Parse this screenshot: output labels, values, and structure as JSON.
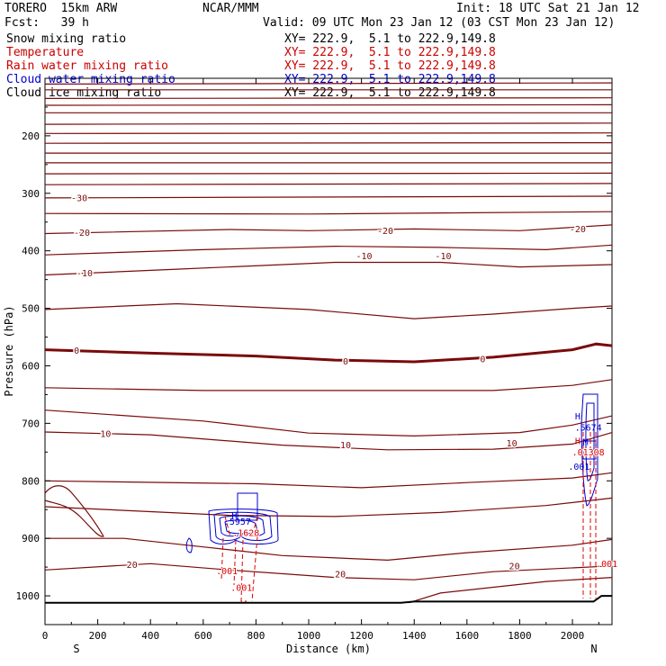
{
  "header": {
    "model": "TORERO  15km ARW",
    "center": "NCAR/MMM",
    "init": "Init: 18 UTC Sat 21 Jan 12",
    "fcst": "Fcst:   39 h",
    "valid": "Valid: 09 UTC Mon 23 Jan 12 (03 CST Mon 23 Jan 12)"
  },
  "legend": [
    {
      "name": "Snow mixing ratio",
      "xy": "XY= 222.9,  5.1 to 222.9,149.8",
      "color": "#000000",
      "xy_color": "#000000"
    },
    {
      "name": "Temperature",
      "xy": "XY= 222.9,  5.1 to 222.9,149.8",
      "color": "#cc0000",
      "xy_color": "#cc0000"
    },
    {
      "name": "Rain water mixing ratio",
      "xy": "XY= 222.9,  5.1 to 222.9,149.8",
      "color": "#cc0000",
      "xy_color": "#cc0000"
    },
    {
      "name": "Cloud water mixing ratio",
      "xy": "XY= 222.9,  5.1 to 222.9,149.8",
      "color": "#0000cc",
      "xy_color": "#0000cc"
    },
    {
      "name": "Cloud ice mixing ratio",
      "xy": "XY= 222.9,  5.1 to 222.9,149.8",
      "color": "#000000",
      "xy_color": "#000000"
    }
  ],
  "chart_data": {
    "type": "line",
    "title": "",
    "xlabel": "Distance (km)",
    "ylabel": "Pressure (hPa)",
    "xlim": [
      0,
      2150
    ],
    "ylim": [
      1050,
      100
    ],
    "xticks": [
      0,
      200,
      400,
      600,
      800,
      1000,
      1200,
      1400,
      1600,
      1800,
      2000
    ],
    "yticks": [
      200,
      300,
      400,
      500,
      600,
      700,
      800,
      900,
      1000
    ],
    "x_end_labels": {
      "left": "S",
      "right": "N"
    },
    "grid": false,
    "isotherm_color": "#7a0a0a",
    "ground_pressure": [
      [
        0,
        1012
      ],
      [
        1000,
        1012
      ],
      [
        1350,
        1012
      ],
      [
        1400,
        1010
      ],
      [
        1500,
        1010
      ],
      [
        1800,
        1010
      ],
      [
        2080,
        1010
      ],
      [
        2110,
        1000
      ],
      [
        2150,
        1000
      ]
    ],
    "isotherms": [
      {
        "pts": [
          [
            0,
            110
          ],
          [
            2150,
            108
          ]
        ]
      },
      {
        "pts": [
          [
            0,
            120
          ],
          [
            2150,
            120
          ]
        ]
      },
      {
        "pts": [
          [
            0,
            135
          ],
          [
            2150,
            134
          ]
        ]
      },
      {
        "pts": [
          [
            0,
            147
          ],
          [
            2150,
            146
          ]
        ]
      },
      {
        "pts": [
          [
            0,
            160
          ],
          [
            2150,
            160
          ]
        ]
      },
      {
        "pts": [
          [
            0,
            180
          ],
          [
            2150,
            178
          ]
        ]
      },
      {
        "pts": [
          [
            0,
            196
          ],
          [
            2150,
            195
          ]
        ]
      },
      {
        "pts": [
          [
            0,
            213
          ],
          [
            2150,
            212
          ]
        ]
      },
      {
        "pts": [
          [
            0,
            230
          ],
          [
            2150,
            230
          ]
        ]
      },
      {
        "pts": [
          [
            0,
            247
          ],
          [
            2150,
            247
          ]
        ]
      },
      {
        "pts": [
          [
            0,
            266
          ],
          [
            2150,
            265
          ]
        ]
      },
      {
        "pts": [
          [
            0,
            285
          ],
          [
            2150,
            283
          ]
        ]
      },
      {
        "pts": [
          [
            0,
            308
          ],
          [
            2150,
            305
          ]
        ],
        "label": "-30",
        "lx": 130
      },
      {
        "pts": [
          [
            0,
            335
          ],
          [
            1000,
            336
          ],
          [
            2150,
            332
          ]
        ]
      },
      {
        "pts": [
          [
            0,
            370
          ],
          [
            700,
            363
          ],
          [
            1000,
            365
          ],
          [
            1400,
            362
          ],
          [
            1800,
            365
          ],
          [
            2150,
            355
          ]
        ],
        "label": "-20",
        "lx": 140
      },
      {
        "pts": [
          [
            0,
            407
          ],
          [
            600,
            398
          ],
          [
            1100,
            392
          ],
          [
            1500,
            394
          ],
          [
            1900,
            398
          ],
          [
            2150,
            390
          ]
        ]
      },
      {
        "pts": [
          [
            0,
            442
          ],
          [
            500,
            432
          ],
          [
            1100,
            420
          ],
          [
            1500,
            420
          ],
          [
            1800,
            428
          ],
          [
            2150,
            424
          ]
        ],
        "label": "-10",
        "lx": 150
      },
      {
        "pts": [
          [
            0,
            502
          ],
          [
            500,
            492
          ],
          [
            1000,
            502
          ],
          [
            1400,
            518
          ],
          [
            1700,
            510
          ],
          [
            2000,
            500
          ],
          [
            2150,
            496
          ]
        ]
      },
      {
        "pts": [
          [
            0,
            572
          ],
          [
            400,
            578
          ],
          [
            800,
            583
          ],
          [
            1100,
            590
          ],
          [
            1400,
            593
          ],
          [
            1700,
            585
          ],
          [
            2000,
            572
          ],
          [
            2090,
            562
          ],
          [
            2150,
            565
          ]
        ],
        "label": "0",
        "lx": 120,
        "bold": true
      },
      {
        "pts": [
          [
            0,
            638
          ],
          [
            600,
            643
          ],
          [
            1200,
            643
          ],
          [
            1700,
            643
          ],
          [
            2000,
            634
          ],
          [
            2150,
            624
          ]
        ]
      },
      {
        "pts": [
          [
            0,
            677
          ],
          [
            600,
            696
          ],
          [
            1000,
            717
          ],
          [
            1400,
            722
          ],
          [
            1800,
            716
          ],
          [
            2000,
            703
          ],
          [
            2150,
            687
          ]
        ]
      },
      {
        "pts": [
          [
            0,
            715
          ],
          [
            400,
            720
          ],
          [
            900,
            738
          ],
          [
            1300,
            746
          ],
          [
            1700,
            745
          ],
          [
            2000,
            736
          ],
          [
            2150,
            716
          ]
        ],
        "label": "10",
        "lx": 230
      },
      {
        "pts": [
          [
            0,
            800
          ],
          [
            800,
            805
          ],
          [
            1200,
            812
          ],
          [
            1600,
            803
          ],
          [
            2000,
            795
          ],
          [
            2150,
            786
          ]
        ]
      },
      {
        "pts": [
          [
            0,
            845
          ],
          [
            700,
            860
          ],
          [
            1100,
            862
          ],
          [
            1500,
            855
          ],
          [
            1900,
            843
          ],
          [
            2150,
            830
          ]
        ]
      },
      {
        "pts": [
          [
            0,
            900
          ],
          [
            300,
            900
          ],
          [
            600,
            915
          ],
          [
            900,
            930
          ],
          [
            1300,
            938
          ],
          [
            1600,
            925
          ],
          [
            2000,
            912
          ],
          [
            2150,
            902
          ]
        ]
      },
      {
        "pts": [
          [
            0,
            955
          ],
          [
            400,
            944
          ],
          [
            700,
            955
          ],
          [
            1100,
            968
          ],
          [
            1400,
            972
          ],
          [
            1700,
            958
          ],
          [
            2150,
            948
          ]
        ],
        "label": "20",
        "lx": 330
      },
      {
        "pts": [
          [
            1380,
            1012
          ],
          [
            1500,
            995
          ],
          [
            1700,
            985
          ],
          [
            1900,
            975
          ],
          [
            2150,
            968
          ]
        ]
      }
    ],
    "contour_labels": [
      {
        "text": "-20",
        "x": 1290,
        "p": 365
      },
      {
        "text": "-20",
        "x": 2020,
        "p": 362
      },
      {
        "text": "-10",
        "x": 1210,
        "p": 409
      },
      {
        "text": "-10",
        "x": 1510,
        "p": 409
      },
      {
        "text": "0",
        "x": 1140,
        "p": 592
      },
      {
        "text": "0",
        "x": 1660,
        "p": 588
      },
      {
        "text": "10",
        "x": 1140,
        "p": 738
      },
      {
        "text": "10",
        "x": 1770,
        "p": 735
      },
      {
        "text": "20",
        "x": 1120,
        "p": 962
      },
      {
        "text": "20",
        "x": 1780,
        "p": 948
      }
    ],
    "cloud_water": [
      {
        "value": 0.5957,
        "x": 730,
        "p": 871
      },
      {
        "value": 0.5674,
        "x": 2060,
        "p": 707
      }
    ],
    "rain_water": [
      {
        "value": 0.1628,
        "x": 762,
        "p": 890
      },
      {
        "value": 0.01308,
        "x": 2060,
        "p": 750
      },
      {
        "value": 0.001,
        "x": 690,
        "p": 957
      },
      {
        "value": 0.001,
        "x": 745,
        "p": 986
      },
      {
        "value": 0.001,
        "x": 2130,
        "p": 944
      }
    ],
    "cloud_labels": [
      {
        "text": "H",
        "x": 718,
        "p": 860,
        "color": "#0000cc"
      },
      {
        "text": ".001",
        "x": 2025,
        "p": 775,
        "color": "#0000cc"
      },
      {
        "text": "H",
        "x": 2020,
        "p": 688,
        "color": "#0000cc"
      },
      {
        "text": "H",
        "x": 2020,
        "p": 731,
        "color": "#cc0000"
      },
      {
        "text": "M",
        "x": 2050,
        "p": 732,
        "color": "#0000cc"
      }
    ]
  }
}
